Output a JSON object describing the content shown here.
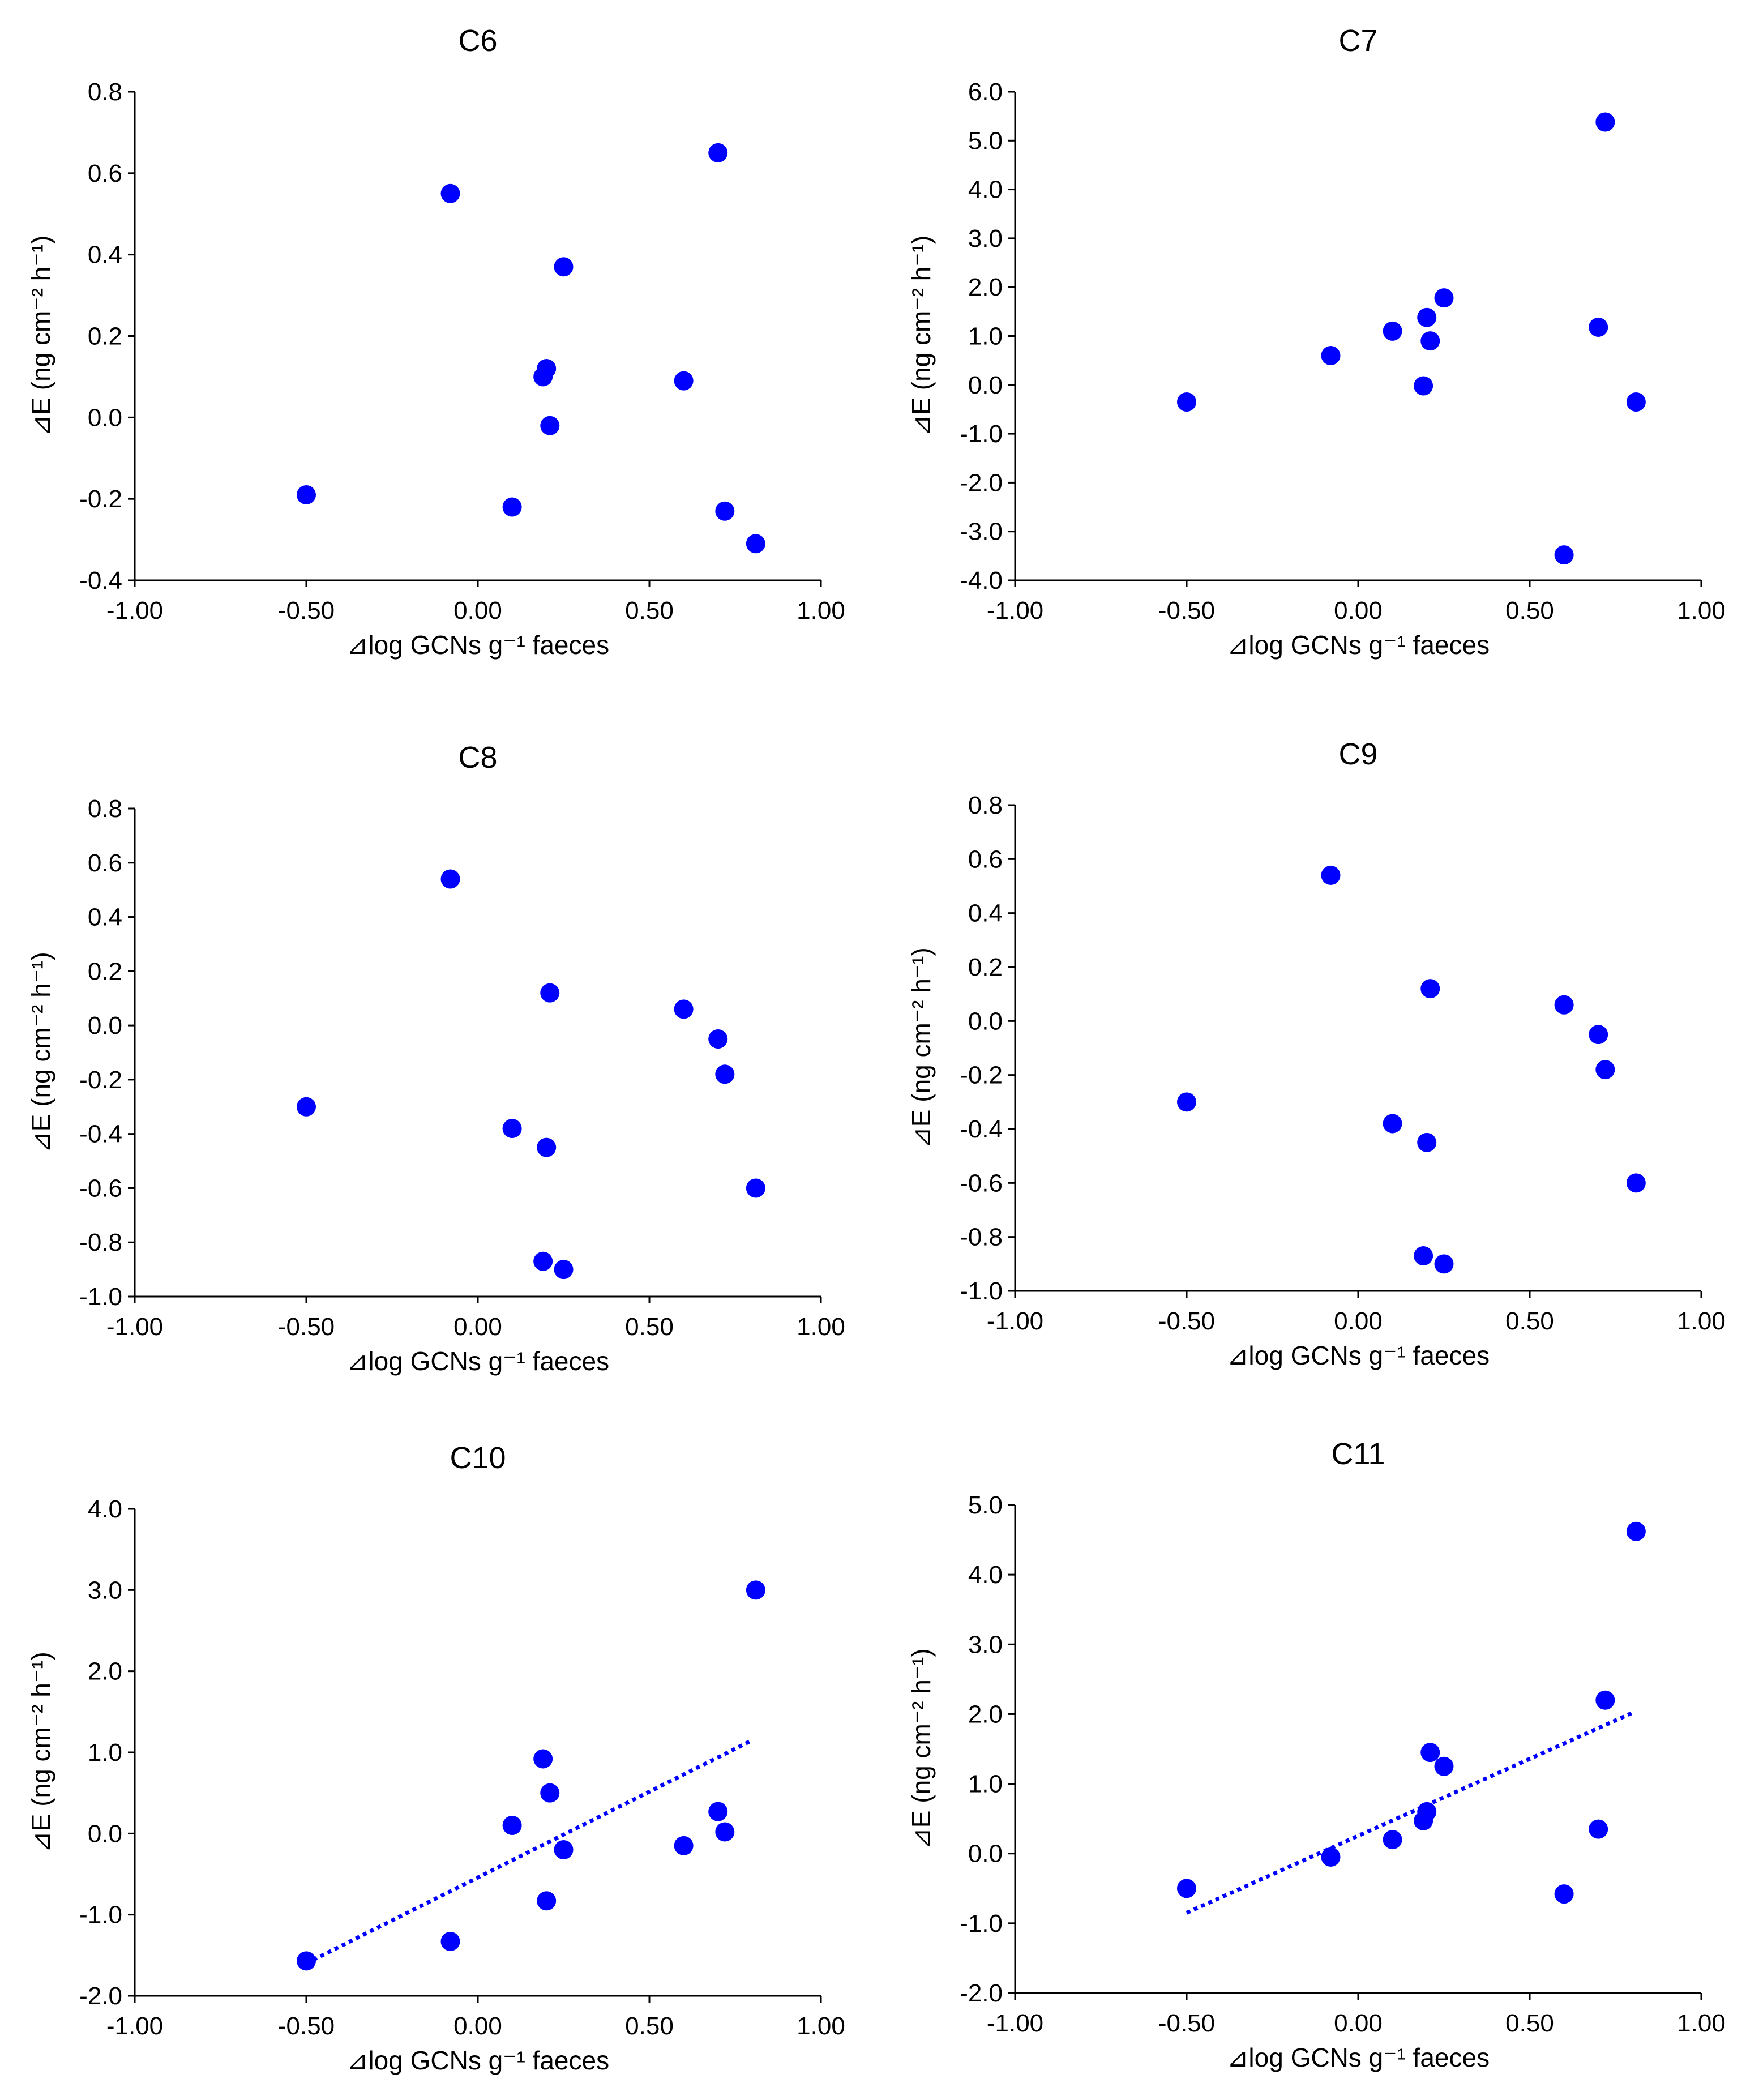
{
  "colors": {
    "point": "#0000ff",
    "trendline": "#0000ff",
    "axis": "#000000"
  },
  "chart_data": [
    {
      "type": "scatter",
      "title": "C6",
      "xlabel": "⊿log GCNs g⁻¹ faeces",
      "ylabel": "⊿E  (ng cm⁻² h⁻¹)",
      "xlim": [
        -1.0,
        1.0
      ],
      "ylim": [
        -0.4,
        0.8
      ],
      "xticks": [
        -1.0,
        -0.5,
        0.0,
        0.5,
        1.0
      ],
      "xtick_labels": [
        "-1.00",
        "-0.50",
        "0.00",
        "0.50",
        "1.00"
      ],
      "yticks": [
        -0.4,
        -0.2,
        0.0,
        0.2,
        0.4,
        0.6,
        0.8
      ],
      "ytick_labels": [
        "-0.4",
        "-0.2",
        "0.0",
        "0.2",
        "0.4",
        "0.6",
        "0.8"
      ],
      "x": [
        -0.5,
        -0.08,
        0.1,
        0.19,
        0.2,
        0.21,
        0.25,
        0.6,
        0.7,
        0.72,
        0.81
      ],
      "y": [
        -0.19,
        0.55,
        -0.22,
        0.1,
        0.12,
        -0.02,
        0.37,
        0.09,
        0.65,
        -0.23,
        -0.31
      ],
      "trendline": null
    },
    {
      "type": "scatter",
      "title": "C7",
      "xlabel": "⊿log GCNs g⁻¹ faeces",
      "ylabel": "⊿E  (ng cm⁻² h⁻¹)",
      "xlim": [
        -1.0,
        1.0
      ],
      "ylim": [
        -4.0,
        6.0
      ],
      "xticks": [
        -1.0,
        -0.5,
        0.0,
        0.5,
        1.0
      ],
      "xtick_labels": [
        "-1.00",
        "-0.50",
        "0.00",
        "0.50",
        "1.00"
      ],
      "yticks": [
        -4,
        -3,
        -2,
        -1,
        0,
        1,
        2,
        3,
        4,
        5,
        6
      ],
      "ytick_labels": [
        "-4.0",
        "-3.0",
        "-2.0",
        "-1.0",
        "0.0",
        "1.0",
        "2.0",
        "3.0",
        "4.0",
        "5.0",
        "6.0"
      ],
      "x": [
        -0.5,
        -0.08,
        0.1,
        0.19,
        0.2,
        0.21,
        0.25,
        0.6,
        0.7,
        0.72,
        0.81
      ],
      "y": [
        -0.35,
        0.6,
        1.1,
        -0.02,
        1.38,
        0.9,
        1.78,
        -3.48,
        1.18,
        5.38,
        -0.35
      ],
      "trendline": null
    },
    {
      "type": "scatter",
      "title": "C8",
      "xlabel": "⊿log GCNs g⁻¹ faeces",
      "ylabel": "⊿E  (ng cm⁻² h⁻¹)",
      "xlim": [
        -1.0,
        1.0
      ],
      "ylim": [
        -1.0,
        0.8
      ],
      "xticks": [
        -1.0,
        -0.5,
        0.0,
        0.5,
        1.0
      ],
      "xtick_labels": [
        "-1.00",
        "-0.50",
        "0.00",
        "0.50",
        "1.00"
      ],
      "yticks": [
        -1.0,
        -0.8,
        -0.6,
        -0.4,
        -0.2,
        0.0,
        0.2,
        0.4,
        0.6,
        0.8
      ],
      "ytick_labels": [
        "-1.0",
        "-0.8",
        "-0.6",
        "-0.4",
        "-0.2",
        "0.0",
        "0.2",
        "0.4",
        "0.6",
        "0.8"
      ],
      "x": [
        -0.5,
        -0.08,
        0.1,
        0.19,
        0.2,
        0.21,
        0.25,
        0.6,
        0.7,
        0.72,
        0.81
      ],
      "y": [
        -0.3,
        0.54,
        -0.38,
        -0.87,
        -0.45,
        0.12,
        -0.9,
        0.06,
        -0.05,
        -0.18,
        -0.6
      ],
      "trendline": null
    },
    {
      "type": "scatter",
      "title": "C9",
      "xlabel": "⊿log GCNs g⁻¹ faeces",
      "ylabel": "⊿E  (ng cm⁻² h⁻¹)",
      "xlim": [
        -1.0,
        1.0
      ],
      "ylim": [
        -1.0,
        0.8
      ],
      "xticks": [
        -1.0,
        -0.5,
        0.0,
        0.5,
        1.0
      ],
      "xtick_labels": [
        "-1.00",
        "-0.50",
        "0.00",
        "0.50",
        "1.00"
      ],
      "yticks": [
        -1.0,
        -0.8,
        -0.6,
        -0.4,
        -0.2,
        0.0,
        0.2,
        0.4,
        0.6,
        0.8
      ],
      "ytick_labels": [
        "-1.0",
        "-0.8",
        "-0.6",
        "-0.4",
        "-0.2",
        "0.0",
        "0.2",
        "0.4",
        "0.6",
        "0.8"
      ],
      "x": [
        -0.5,
        -0.08,
        0.1,
        0.19,
        0.2,
        0.21,
        0.25,
        0.6,
        0.7,
        0.72,
        0.81
      ],
      "y": [
        -0.3,
        0.54,
        -0.38,
        -0.87,
        -0.45,
        0.12,
        -0.9,
        0.06,
        -0.05,
        -0.18,
        -0.6
      ],
      "trendline": null
    },
    {
      "type": "scatter",
      "title": "C10",
      "xlabel": "⊿log GCNs g⁻¹ faeces",
      "ylabel": "⊿E  (ng cm⁻² h⁻¹)",
      "xlim": [
        -1.0,
        1.0
      ],
      "ylim": [
        -2.0,
        4.0
      ],
      "xticks": [
        -1.0,
        -0.5,
        0.0,
        0.5,
        1.0
      ],
      "xtick_labels": [
        "-1.00",
        "-0.50",
        "0.00",
        "0.50",
        "1.00"
      ],
      "yticks": [
        -2,
        -1,
        0,
        1,
        2,
        3,
        4
      ],
      "ytick_labels": [
        "-2.0",
        "-1.0",
        "0.0",
        "1.0",
        "2.0",
        "3.0",
        "4.0"
      ],
      "x": [
        -0.5,
        -0.08,
        0.1,
        0.19,
        0.2,
        0.21,
        0.25,
        0.6,
        0.7,
        0.72,
        0.81
      ],
      "y": [
        -1.57,
        -1.33,
        0.1,
        0.92,
        -0.83,
        0.5,
        -0.2,
        -0.15,
        0.27,
        0.02,
        3.0
      ],
      "trendline": {
        "style": "dotted",
        "x": [
          -0.5,
          0.8
        ],
        "y": [
          -1.6,
          1.15
        ]
      }
    },
    {
      "type": "scatter",
      "title": "C11",
      "xlabel": "⊿log GCNs g⁻¹ faeces",
      "ylabel": "⊿E  (ng cm⁻² h⁻¹)",
      "xlim": [
        -1.0,
        1.0
      ],
      "ylim": [
        -2.0,
        5.0
      ],
      "xticks": [
        -1.0,
        -0.5,
        0.0,
        0.5,
        1.0
      ],
      "xtick_labels": [
        "-1.00",
        "-0.50",
        "0.00",
        "0.50",
        "1.00"
      ],
      "yticks": [
        -2,
        -1,
        0,
        1,
        2,
        3,
        4,
        5
      ],
      "ytick_labels": [
        "-2.0",
        "-1.0",
        "0.0",
        "1.0",
        "2.0",
        "3.0",
        "4.0",
        "5.0"
      ],
      "x": [
        -0.5,
        -0.08,
        0.1,
        0.19,
        0.2,
        0.21,
        0.25,
        0.6,
        0.7,
        0.72,
        0.81
      ],
      "y": [
        -0.5,
        -0.05,
        0.2,
        0.47,
        0.6,
        1.45,
        1.25,
        -0.58,
        0.35,
        2.2,
        4.62
      ],
      "trendline": {
        "style": "dotted",
        "x": [
          -0.5,
          0.8
        ],
        "y": [
          -0.85,
          2.02
        ]
      }
    }
  ]
}
